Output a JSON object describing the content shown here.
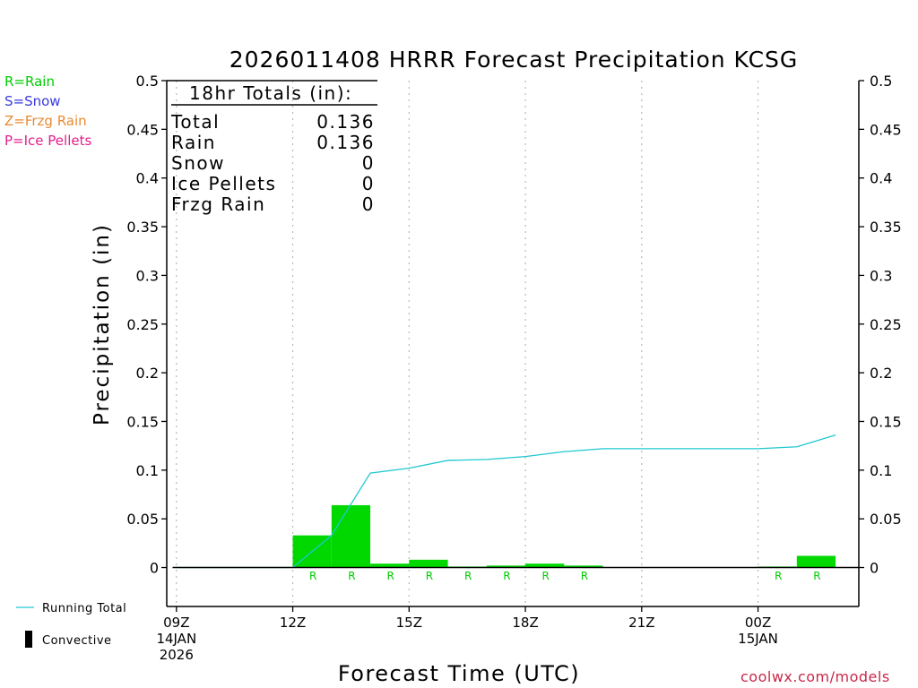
{
  "legend": {
    "rain": {
      "text": "R=Rain",
      "color": "#00cc00"
    },
    "snow": {
      "text": "S=Snow",
      "color": "#3a3ae0"
    },
    "frzg": {
      "text": "Z=Frzg Rain",
      "color": "#e88a32"
    },
    "ice": {
      "text": "P=Ice Pellets",
      "color": "#e0208c"
    },
    "running_total": "Running Total",
    "convective": "Convective"
  },
  "credit": "coolwx.com/models",
  "totals": {
    "heading": "18hr Totals (in):",
    "rows": [
      {
        "label": "Total",
        "value": "0.136"
      },
      {
        "label": "Rain",
        "value": "0.136"
      },
      {
        "label": "Snow",
        "value": "0"
      },
      {
        "label": "Ice Pellets",
        "value": "0"
      },
      {
        "label": "Frzg Rain",
        "value": "0"
      }
    ]
  },
  "colors": {
    "bar": "#00d800",
    "line": "#1fc8d0",
    "rain_label": "#00cc00",
    "credit": "#c8284a"
  },
  "chart_data": {
    "type": "bar",
    "title": "2026011408 HRRR Forecast Precipitation KCSG",
    "xlabel": "Forecast Time (UTC)",
    "ylabel": "Precipitation (in)",
    "ylim": [
      -0.04,
      0.5
    ],
    "xlim": [
      8.75,
      26.6
    ],
    "grid": "vertical dotted",
    "y_ticks": [
      {
        "value": 0,
        "label": "0"
      },
      {
        "value": 0.05,
        "label": "0.05"
      },
      {
        "value": 0.1,
        "label": "0.1"
      },
      {
        "value": 0.15,
        "label": "0.15"
      },
      {
        "value": 0.2,
        "label": "0.2"
      },
      {
        "value": 0.25,
        "label": "0.25"
      },
      {
        "value": 0.3,
        "label": "0.3"
      },
      {
        "value": 0.35,
        "label": "0.35"
      },
      {
        "value": 0.4,
        "label": "0.4"
      },
      {
        "value": 0.45,
        "label": "0.45"
      },
      {
        "value": 0.5,
        "label": "0.5"
      }
    ],
    "x_ticks": [
      {
        "hour": 9,
        "lines": [
          "09Z",
          "14JAN",
          "2026"
        ]
      },
      {
        "hour": 12,
        "lines": [
          "12Z"
        ]
      },
      {
        "hour": 15,
        "lines": [
          "15Z"
        ]
      },
      {
        "hour": 18,
        "lines": [
          "18Z"
        ]
      },
      {
        "hour": 21,
        "lines": [
          "21Z"
        ]
      },
      {
        "hour": 24,
        "lines": [
          "00Z",
          "15JAN"
        ]
      }
    ],
    "series": [
      {
        "type": "bar",
        "x": [
          13,
          14,
          15,
          16,
          17,
          18,
          19,
          20,
          21,
          22,
          23,
          24,
          25,
          26
        ],
        "values": [
          0.033,
          0.064,
          0.004,
          0.008,
          0.001,
          0.002,
          0.004,
          0.002,
          0.0,
          0.0,
          0.0,
          0.0,
          0.001,
          0.012
        ],
        "ptype": [
          "R",
          "R",
          "R",
          "R",
          "R",
          "R",
          "R",
          "R",
          "",
          "",
          "",
          "",
          "R",
          "R"
        ]
      },
      {
        "type": "line",
        "name": "Running Total",
        "x": [
          9,
          12,
          13,
          14,
          15,
          16,
          17,
          18,
          19,
          20,
          21,
          22,
          23,
          24,
          25,
          26
        ],
        "values": [
          0,
          0,
          0.033,
          0.097,
          0.102,
          0.11,
          0.111,
          0.114,
          0.119,
          0.122,
          0.122,
          0.122,
          0.122,
          0.122,
          0.124,
          0.136
        ]
      }
    ]
  }
}
